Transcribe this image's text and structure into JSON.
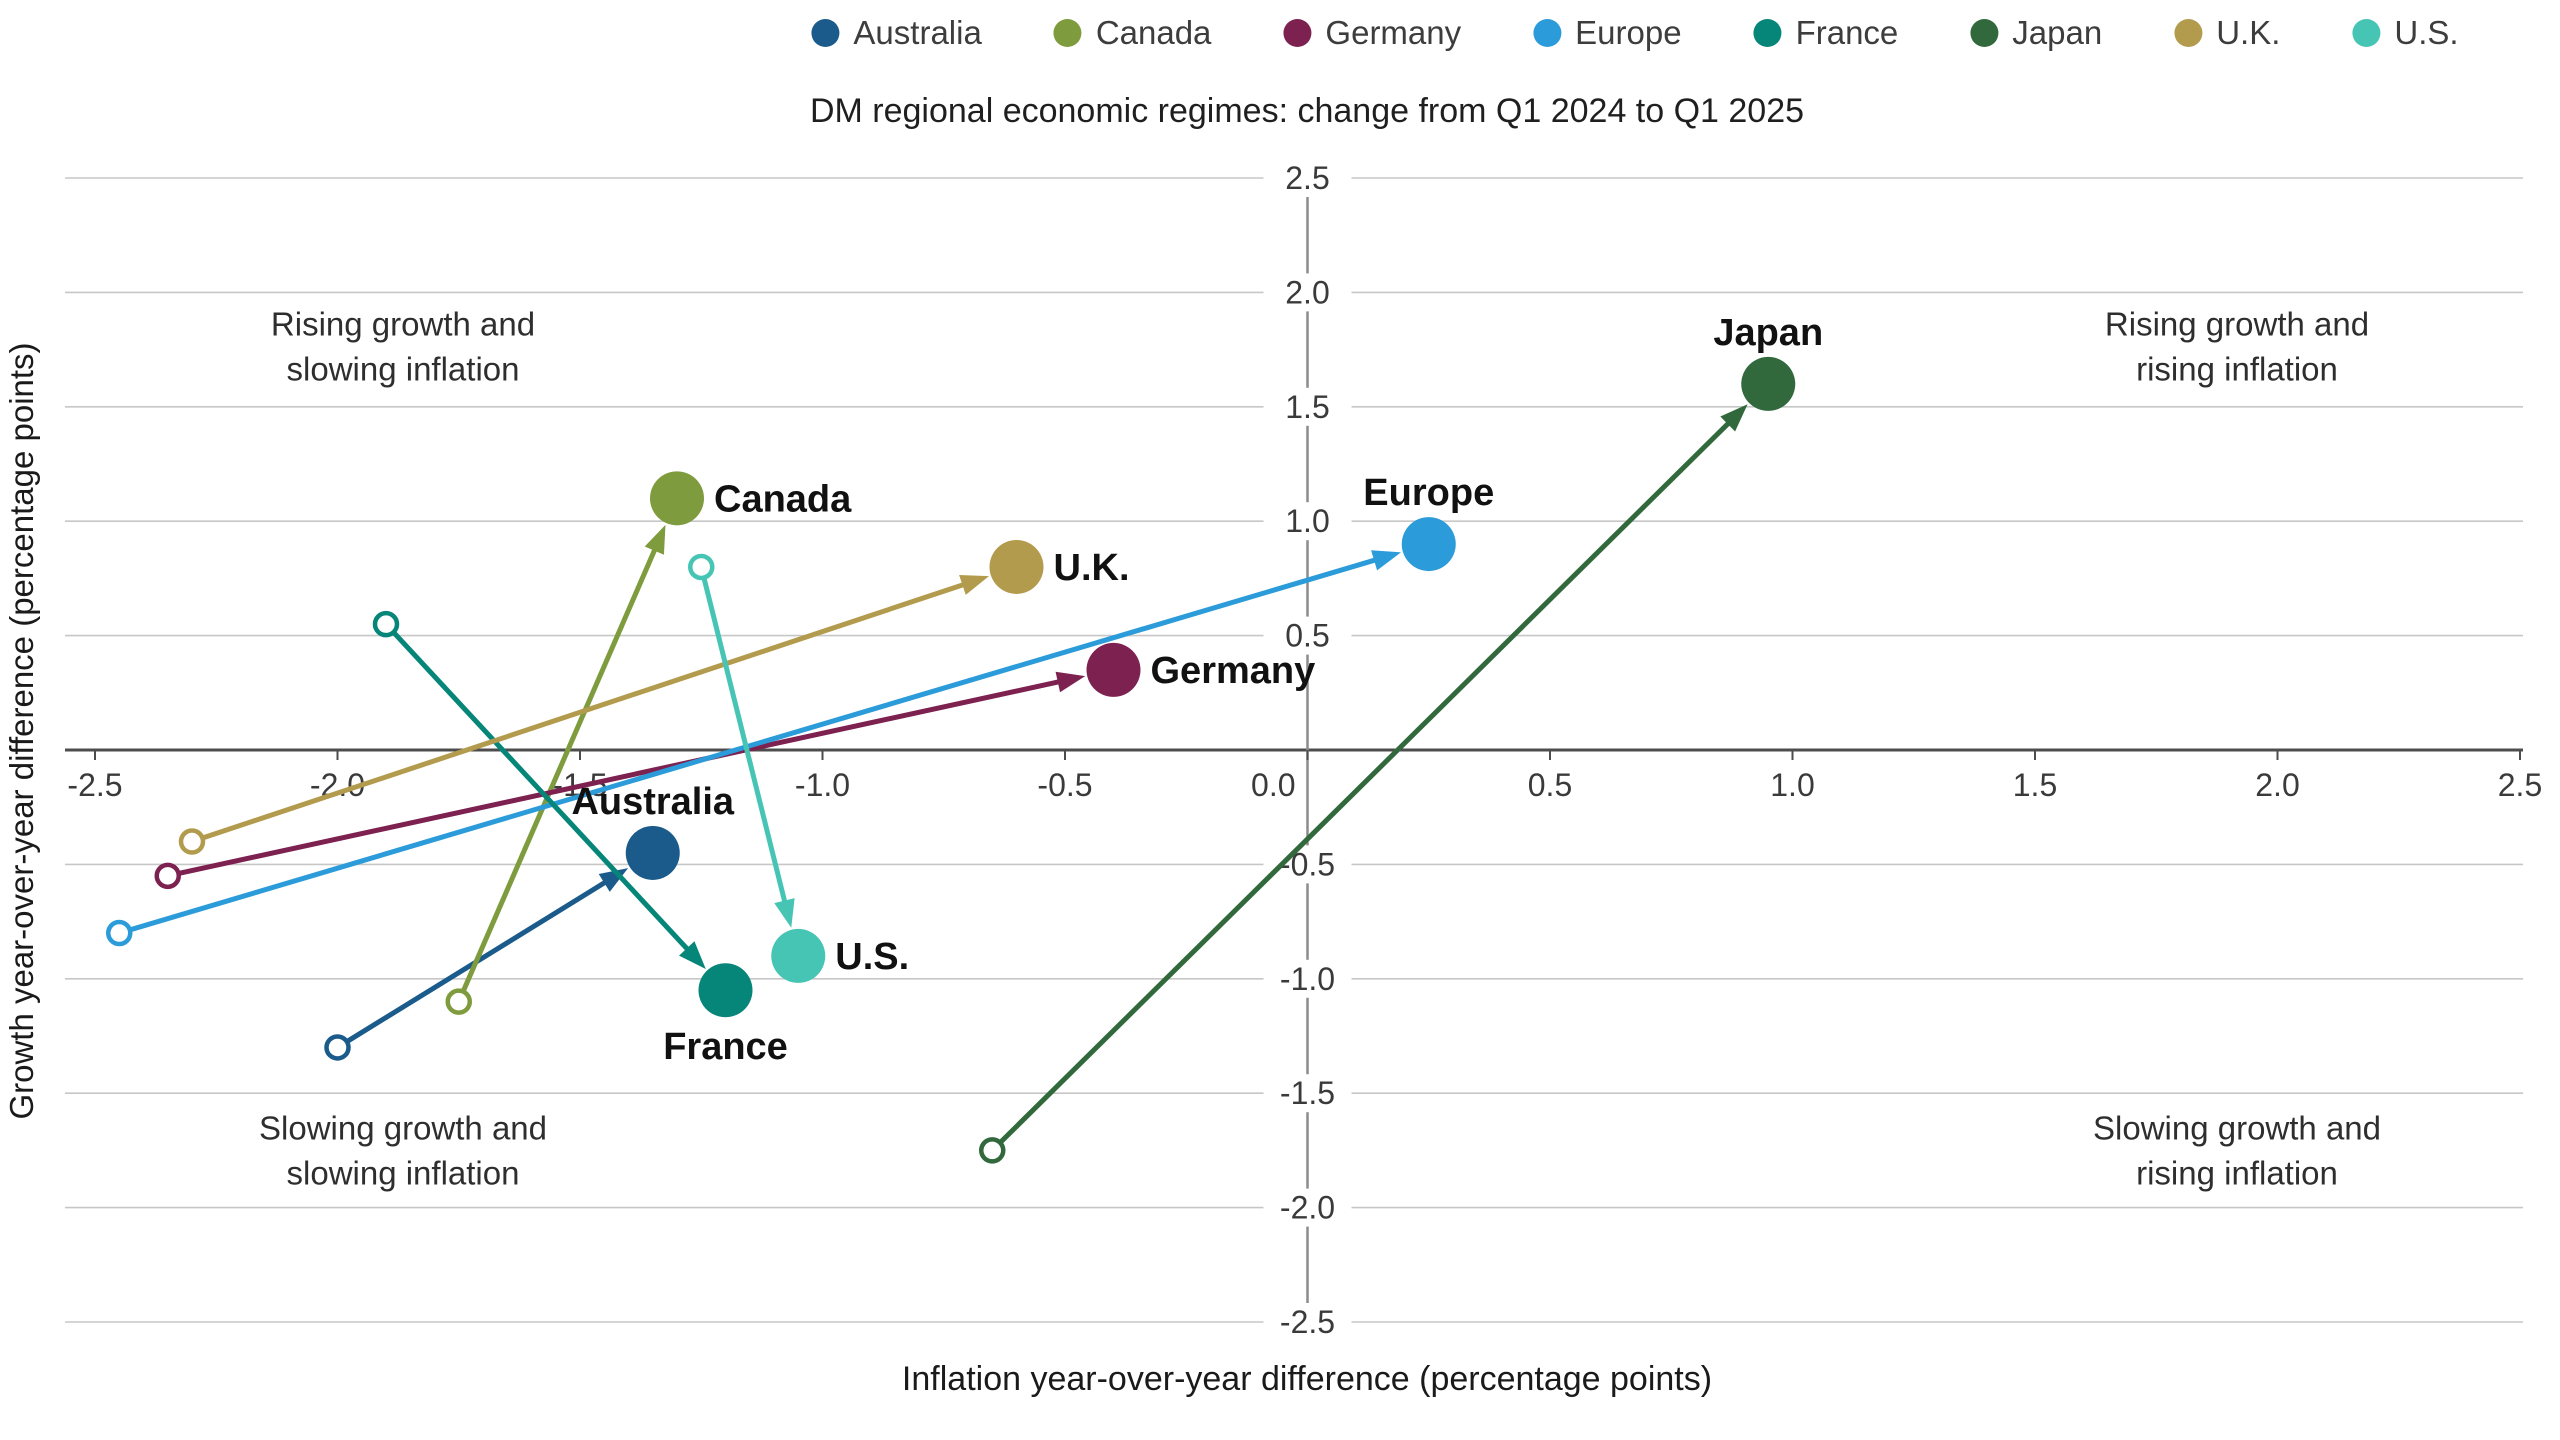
{
  "chart_data": {
    "type": "scatter",
    "title": "DM regional economic regimes: change from Q1 2024 to Q1 2025",
    "xlabel": "Inflation year-over-year difference (percentage points)",
    "ylabel": "Growth year-over-year difference (percentage points)",
    "xlim": [
      -2.5,
      2.5
    ],
    "ylim": [
      -2.5,
      2.5
    ],
    "grid": "horizontal",
    "legend_position": "top",
    "x_tick_labels": [
      "-2.5",
      "-2.0",
      "-1.5",
      "-1.0",
      "-0.5",
      "0.0",
      "0.5",
      "1.0",
      "1.5",
      "2.0",
      "2.5"
    ],
    "y_tick_labels": [
      "2.5",
      "2.0",
      "1.5",
      "1.0",
      "0.5",
      "-0.5",
      "-1.0",
      "-1.5",
      "-2.0",
      "-2.5"
    ],
    "axis_colors": {
      "grid": "#c7c7c7",
      "zero_axis": "#4d4d4d",
      "center_line": "#8c8c8c",
      "tick_text": "#3a3a3a"
    },
    "series": [
      {
        "name": "Australia",
        "color": "#1a5b8c",
        "q1_2024": [
          -2.0,
          -1.3
        ],
        "q1_2025": [
          -1.35,
          -0.45
        ],
        "label_pos": "above"
      },
      {
        "name": "Canada",
        "color": "#7e9b3d",
        "q1_2024": [
          -1.75,
          -1.1
        ],
        "q1_2025": [
          -1.3,
          1.1
        ],
        "label_pos": "right"
      },
      {
        "name": "Germany",
        "color": "#7d2150",
        "q1_2024": [
          -2.35,
          -0.55
        ],
        "q1_2025": [
          -0.4,
          0.35
        ],
        "label_pos": "right"
      },
      {
        "name": "Europe",
        "color": "#2b9cd9",
        "q1_2024": [
          -2.45,
          -0.8
        ],
        "q1_2025": [
          0.25,
          0.9
        ],
        "label_pos": "above"
      },
      {
        "name": "France",
        "color": "#068579",
        "q1_2024": [
          -1.9,
          0.55
        ],
        "q1_2025": [
          -1.2,
          -1.05
        ],
        "label_pos": "below"
      },
      {
        "name": "Japan",
        "color": "#31693c",
        "q1_2024": [
          -0.65,
          -1.75
        ],
        "q1_2025": [
          0.95,
          1.6
        ],
        "label_pos": "above"
      },
      {
        "name": "U.K.",
        "color": "#b39b4e",
        "q1_2024": [
          -2.3,
          -0.4
        ],
        "q1_2025": [
          -0.6,
          0.8
        ],
        "label_pos": "right"
      },
      {
        "name": "U.S.",
        "color": "#46c5b4",
        "q1_2024": [
          -1.25,
          0.8
        ],
        "q1_2025": [
          -1.05,
          -0.9
        ],
        "label_pos": "right"
      }
    ],
    "quadrant_labels": {
      "top_left": "Rising growth and\nslowing inflation",
      "top_right": "Rising growth and\nrising inflation",
      "bottom_left": "Slowing growth and\nslowing inflation",
      "bottom_right": "Slowing growth and\nrising inflation"
    }
  }
}
